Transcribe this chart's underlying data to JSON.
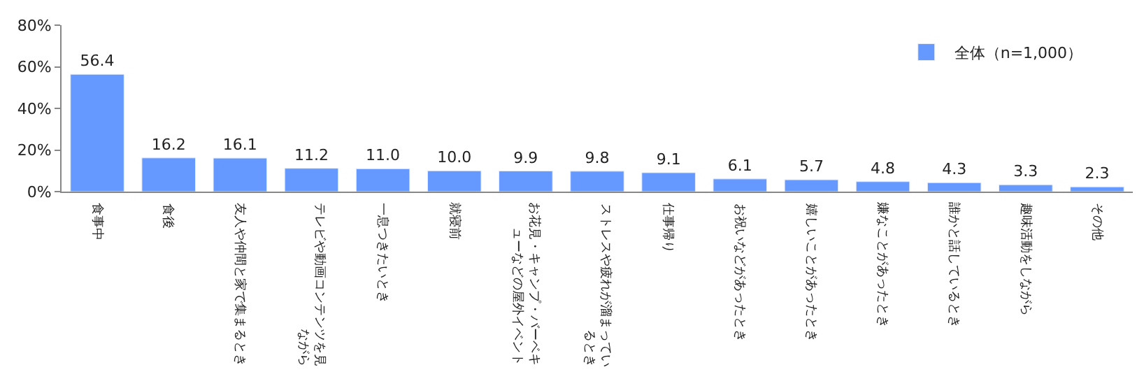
{
  "chart_data": {
    "type": "bar",
    "categories": [
      "食事中",
      "食後",
      "友人や仲間と家で集まるとき",
      "テレビや動画コンテンツを見ながら",
      "一息つきたいとき",
      "就寝前",
      "お花見・キャンプ・バーベキューなどの屋外イベント",
      "ストレスや疲れが溜まっているとき",
      "仕事帰り",
      "お祝いなどがあったとき",
      "嬉しいことがあったとき",
      "嫌なことがあったとき",
      "誰かと話しているとき",
      "趣味活動をしながら",
      "その他"
    ],
    "series": [
      {
        "name": "全体（n=1,000）",
        "color": "#6699ff",
        "values": [
          56.4,
          16.2,
          16.1,
          11.2,
          11.0,
          10.0,
          9.9,
          9.8,
          9.1,
          6.1,
          5.7,
          4.8,
          4.3,
          3.3,
          2.3
        ],
        "value_labels": [
          "56.4",
          "16.2",
          "16.1",
          "11.2",
          "11.0",
          "10.0",
          "9.9",
          "9.8",
          "9.1",
          "6.1",
          "5.7",
          "4.8",
          "4.3",
          "3.3",
          "2.3"
        ]
      }
    ],
    "ylim": [
      0,
      80
    ],
    "yticks": [
      {
        "value": 0,
        "label": "0%"
      },
      {
        "value": 20,
        "label": "20%"
      },
      {
        "value": 40,
        "label": "40%"
      },
      {
        "value": 60,
        "label": "60%"
      },
      {
        "value": 80,
        "label": "80%"
      }
    ],
    "legend": "top right"
  }
}
